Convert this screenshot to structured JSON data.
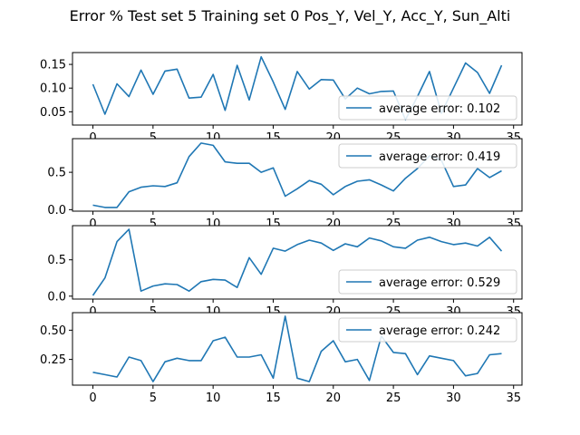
{
  "figure": {
    "title": "Error % Test set 5 Training set 0 Pos_Y, Vel_Y, Acc_Y, Sun_Alti"
  },
  "colors": {
    "line": "#1f77b4",
    "axes": "#000000",
    "legend_border": "#cccccc"
  },
  "chart_data": [
    {
      "type": "line",
      "x": [
        0,
        1,
        2,
        3,
        4,
        5,
        6,
        7,
        8,
        9,
        10,
        11,
        12,
        13,
        14,
        15,
        16,
        17,
        18,
        19,
        20,
        21,
        22,
        23,
        24,
        25,
        26,
        27,
        28,
        29,
        30,
        31,
        32,
        33,
        34
      ],
      "series": [
        {
          "name": "average error: 0.102",
          "values": [
            0.108,
            0.045,
            0.109,
            0.082,
            0.138,
            0.087,
            0.136,
            0.14,
            0.079,
            0.081,
            0.129,
            0.053,
            0.148,
            0.075,
            0.166,
            0.113,
            0.055,
            0.135,
            0.098,
            0.118,
            0.117,
            0.077,
            0.1,
            0.088,
            0.093,
            0.094,
            0.033,
            0.082,
            0.135,
            0.047,
            0.1,
            0.153,
            0.133,
            0.089,
            0.148
          ]
        }
      ],
      "ylim": [
        0.022,
        0.175
      ],
      "xlim": [
        -1.7,
        35.7
      ],
      "yticks": [
        0.05,
        0.1,
        0.15
      ],
      "ytick_labels": [
        "0.05",
        "0.10",
        "0.15"
      ],
      "xticks": [
        0,
        5,
        10,
        15,
        20,
        25,
        30,
        35
      ],
      "xtick_labels": [
        "0",
        "5",
        "10",
        "15",
        "20",
        "25",
        "30",
        "35"
      ],
      "legend_loc": "lower-right"
    },
    {
      "type": "line",
      "x": [
        0,
        1,
        2,
        3,
        4,
        5,
        6,
        7,
        8,
        9,
        10,
        11,
        12,
        13,
        14,
        15,
        16,
        17,
        18,
        19,
        20,
        21,
        22,
        23,
        24,
        25,
        26,
        27,
        28,
        29,
        30,
        31,
        32,
        33,
        34
      ],
      "series": [
        {
          "name": "average error: 0.419",
          "values": [
            0.06,
            0.03,
            0.03,
            0.24,
            0.3,
            0.32,
            0.31,
            0.36,
            0.71,
            0.89,
            0.86,
            0.64,
            0.62,
            0.62,
            0.5,
            0.56,
            0.18,
            0.28,
            0.39,
            0.34,
            0.2,
            0.31,
            0.38,
            0.4,
            0.33,
            0.25,
            0.42,
            0.55,
            0.72,
            0.66,
            0.31,
            0.33,
            0.55,
            0.43,
            0.52
          ]
        }
      ],
      "ylim": [
        -0.02,
        0.95
      ],
      "xlim": [
        -1.7,
        35.7
      ],
      "yticks": [
        0.0,
        0.5
      ],
      "ytick_labels": [
        "0.0",
        "0.5"
      ],
      "xticks": [
        0,
        5,
        10,
        15,
        20,
        25,
        30,
        35
      ],
      "xtick_labels": [
        "0",
        "5",
        "10",
        "15",
        "20",
        "25",
        "30",
        "35"
      ],
      "legend_loc": "upper-right"
    },
    {
      "type": "line",
      "x": [
        0,
        1,
        2,
        3,
        4,
        5,
        6,
        7,
        8,
        9,
        10,
        11,
        12,
        13,
        14,
        15,
        16,
        17,
        18,
        19,
        20,
        21,
        22,
        23,
        24,
        25,
        26,
        27,
        28,
        29,
        30,
        31,
        32,
        33,
        34
      ],
      "series": [
        {
          "name": "average error: 0.529",
          "values": [
            0.01,
            0.25,
            0.75,
            0.92,
            0.07,
            0.14,
            0.17,
            0.16,
            0.07,
            0.2,
            0.23,
            0.22,
            0.12,
            0.53,
            0.3,
            0.66,
            0.62,
            0.71,
            0.77,
            0.73,
            0.63,
            0.72,
            0.68,
            0.8,
            0.76,
            0.68,
            0.66,
            0.77,
            0.81,
            0.75,
            0.71,
            0.73,
            0.69,
            0.81,
            0.62
          ]
        }
      ],
      "ylim": [
        -0.04,
        0.97
      ],
      "xlim": [
        -1.7,
        35.7
      ],
      "yticks": [
        0.0,
        0.5
      ],
      "ytick_labels": [
        "0.0",
        "0.5"
      ],
      "xticks": [
        0,
        5,
        10,
        15,
        20,
        25,
        30,
        35
      ],
      "xtick_labels": [
        "0",
        "5",
        "10",
        "15",
        "20",
        "25",
        "30",
        "35"
      ],
      "legend_loc": "lower-right"
    },
    {
      "type": "line",
      "x": [
        0,
        1,
        2,
        3,
        4,
        5,
        6,
        7,
        8,
        9,
        10,
        11,
        12,
        13,
        14,
        15,
        16,
        17,
        18,
        19,
        20,
        21,
        22,
        23,
        24,
        25,
        26,
        27,
        28,
        29,
        30,
        31,
        32,
        33,
        34
      ],
      "series": [
        {
          "name": "average error: 0.242",
          "values": [
            0.14,
            0.12,
            0.1,
            0.27,
            0.24,
            0.06,
            0.23,
            0.26,
            0.24,
            0.24,
            0.41,
            0.44,
            0.27,
            0.27,
            0.29,
            0.09,
            0.62,
            0.09,
            0.06,
            0.32,
            0.41,
            0.23,
            0.25,
            0.07,
            0.45,
            0.31,
            0.3,
            0.12,
            0.28,
            0.26,
            0.24,
            0.11,
            0.13,
            0.29,
            0.3
          ]
        }
      ],
      "ylim": [
        0.03,
        0.65
      ],
      "xlim": [
        -1.7,
        35.7
      ],
      "yticks": [
        0.25,
        0.5
      ],
      "ytick_labels": [
        "0.25",
        "0.50"
      ],
      "xticks": [
        0,
        5,
        10,
        15,
        20,
        25,
        30,
        35
      ],
      "xtick_labels": [
        "0",
        "5",
        "10",
        "15",
        "20",
        "25",
        "30",
        "35"
      ],
      "legend_loc": "upper-right"
    }
  ]
}
